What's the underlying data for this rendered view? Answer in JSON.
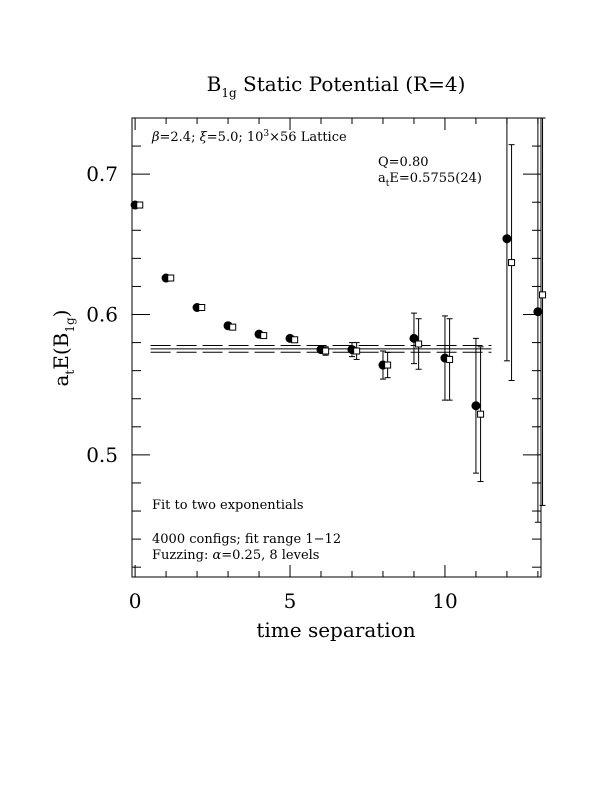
{
  "chart_data": {
    "type": "scatter",
    "title": {
      "main": "B",
      "sub": "1g",
      "rest": " Static Potential (R=4)"
    },
    "xlabel": "time separation",
    "ylabel": {
      "pre": "a",
      "sub1": "t",
      "mid": "E(B",
      "sub2": "1g",
      "post": ")"
    },
    "xlim": [
      -0.1,
      13.1
    ],
    "ylim": [
      0.413,
      0.74
    ],
    "x_ticks": [
      0,
      5,
      10
    ],
    "y_ticks": [
      0.5,
      0.6,
      0.7
    ],
    "x_tick_labels": [
      "0",
      "5",
      "10"
    ],
    "y_tick_labels": [
      "0.5",
      "0.6",
      "0.7"
    ],
    "annotations": {
      "lattice": {
        "beta": "β",
        "a": "=2.4; ",
        "xi": "ξ",
        "b": "=5.0; 10",
        "sup": "3",
        "c": "×56 Lattice"
      },
      "q": "Q=0.80",
      "fit_energy": {
        "pre": "a",
        "sub": "t",
        "post": "E=0.5755(24)"
      },
      "fit_desc": "Fit to two exponentials",
      "configs": "4000 configs; fit range 1−12",
      "fuzzing": {
        "a": "Fuzzing: ",
        "alpha": "α",
        "b": "=0.25, 8 levels"
      }
    },
    "fit": {
      "value": 0.5755,
      "error": 0.0024,
      "x_range": [
        0.5,
        11.5
      ]
    },
    "series": [
      {
        "marker": "filled-circle",
        "points": [
          {
            "x": 0,
            "y": 0.678,
            "err": 0
          },
          {
            "x": 1,
            "y": 0.626,
            "err": 0
          },
          {
            "x": 2,
            "y": 0.605,
            "err": 0
          },
          {
            "x": 3,
            "y": 0.592,
            "err": 0
          },
          {
            "x": 4,
            "y": 0.586,
            "err": 0
          },
          {
            "x": 5,
            "y": 0.583,
            "err": 0
          },
          {
            "x": 6,
            "y": 0.575,
            "err": 0.002
          },
          {
            "x": 7,
            "y": 0.575,
            "err": 0.005
          },
          {
            "x": 8,
            "y": 0.564,
            "err": 0.01
          },
          {
            "x": 9,
            "y": 0.583,
            "err": 0.018
          },
          {
            "x": 10,
            "y": 0.569,
            "err": 0.03
          },
          {
            "x": 11,
            "y": 0.535,
            "err": 0.048
          },
          {
            "x": 12,
            "y": 0.654,
            "err": 0.087
          },
          {
            "x": 13,
            "y": 0.602,
            "err": 0.15
          }
        ]
      },
      {
        "marker": "open-square",
        "points": [
          {
            "x": 0.15,
            "y": 0.678,
            "err": 0
          },
          {
            "x": 1.15,
            "y": 0.626,
            "err": 0
          },
          {
            "x": 2.15,
            "y": 0.605,
            "err": 0
          },
          {
            "x": 3.15,
            "y": 0.591,
            "err": 0
          },
          {
            "x": 4.15,
            "y": 0.585,
            "err": 0
          },
          {
            "x": 5.15,
            "y": 0.582,
            "err": 0
          },
          {
            "x": 6.15,
            "y": 0.574,
            "err": 0.003
          },
          {
            "x": 7.15,
            "y": 0.574,
            "err": 0.006
          },
          {
            "x": 8.15,
            "y": 0.564,
            "err": 0.009
          },
          {
            "x": 9.15,
            "y": 0.579,
            "err": 0.018
          },
          {
            "x": 10.15,
            "y": 0.568,
            "err": 0.029
          },
          {
            "x": 11.15,
            "y": 0.529,
            "err": 0.048
          },
          {
            "x": 12.15,
            "y": 0.637,
            "err": 0.084
          },
          {
            "x": 13.15,
            "y": 0.614,
            "err": 0.15
          }
        ]
      }
    ]
  }
}
